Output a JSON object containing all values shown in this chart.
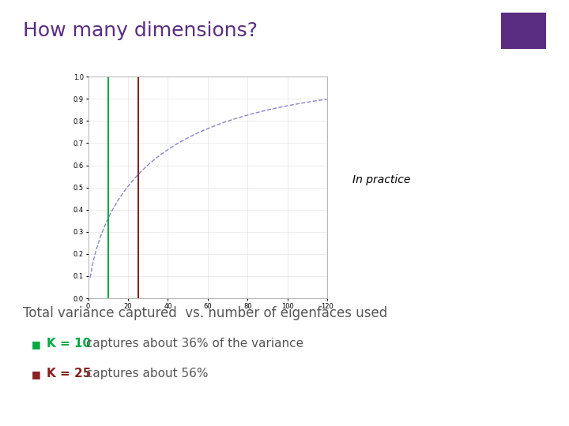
{
  "title": "How many dimensions?",
  "title_color": "#5b2d82",
  "title_fontsize": 18,
  "background_color": "#ffffff",
  "curve_color": "#8888cc",
  "curve_linewidth": 1.0,
  "vline_k10_x": 10,
  "vline_k10_color": "#00aa44",
  "vline_k25_x": 25,
  "vline_k25_color": "#882222",
  "vline_linewidth": 1.5,
  "xmax": 120,
  "ymax": 1.0,
  "xticks": [
    0,
    20,
    40,
    60,
    80,
    100,
    120
  ],
  "ytick_labels": [
    "0",
    "0.1",
    "0.2",
    "0.3",
    "0.4",
    "0.5",
    "0.6",
    "0.7",
    "0.8",
    "0.9",
    "1"
  ],
  "yticks": [
    0,
    0.1,
    0.2,
    0.3,
    0.4,
    0.5,
    0.6,
    0.7,
    0.8,
    0.9,
    1.0
  ],
  "in_practice_text": "In practice",
  "in_practice_color": "#000000",
  "in_practice_fontstyle": "italic",
  "subtitle_text": "Total variance captured  vs. number of eigenfaces used",
  "subtitle_color": "#555555",
  "subtitle_fontsize": 12,
  "bullet1_k_text": "K = 10",
  "bullet1_suffix": " captures about 36% of the variance",
  "bullet1_k_color": "#00aa44",
  "bullet2_k_text": "K = 25",
  "bullet2_suffix": " captures about 56%",
  "bullet2_k_color": "#882222",
  "bullet_color": "#555555",
  "bullet_fontsize": 11,
  "swatch_color": "#5b2d82",
  "curve_k": 0.09804,
  "curve_p": 0.658
}
